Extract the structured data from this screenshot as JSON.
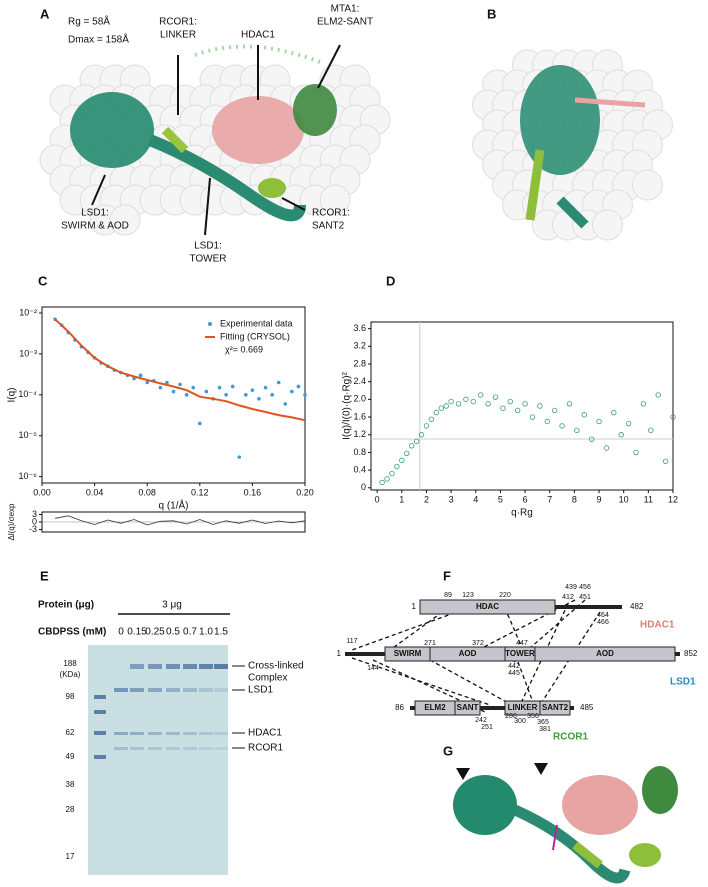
{
  "panel_a": {
    "label": "A",
    "rg": "Rg = 58Å",
    "dmax": "Dmax = 158Å",
    "annotations": [
      [
        "RCOR1:",
        "LINKER"
      ],
      [
        "HDAC1"
      ],
      [
        "MTA1:",
        "ELM2-SANT"
      ],
      [
        "LSD1:",
        "SWIRM & AOD"
      ],
      [
        "LSD1:",
        "TOWER"
      ],
      [
        "RCOR1:",
        "SANT2"
      ]
    ]
  },
  "panel_b": {
    "label": "B"
  },
  "chart_data": [
    {
      "type": "scatter",
      "label": "C",
      "ylabel": "I(q)",
      "xlabel": "q (1/Å)",
      "log_y": true,
      "xlim": [
        0,
        0.2
      ],
      "ylim": [
        7e-07,
        0.014
      ],
      "xticks": [
        {
          "value": 0,
          "label": "0.00"
        },
        0.04,
        0.08,
        0.12,
        0.16,
        {
          "value": 0.2,
          "label": "0.20"
        }
      ],
      "yticks": [
        {
          "value": 0.01,
          "label": "10⁻²"
        },
        {
          "value": 0.001,
          "label": "10⁻³"
        },
        {
          "value": 0.0001,
          "label": "10⁻⁴"
        },
        {
          "value": 1e-05,
          "label": "10⁻⁵"
        },
        {
          "value": 1e-06,
          "label": "10⁻⁶"
        }
      ],
      "annotation": "χ²= 0.669",
      "series": [
        {
          "name": "Experimental data",
          "color": "#3a9ad9",
          "style": "points",
          "x": [
            0.01,
            0.015,
            0.02,
            0.025,
            0.03,
            0.035,
            0.04,
            0.045,
            0.05,
            0.055,
            0.06,
            0.065,
            0.07,
            0.075,
            0.08,
            0.085,
            0.09,
            0.095,
            0.1,
            0.105,
            0.11,
            0.115,
            0.12,
            0.125,
            0.13,
            0.135,
            0.14,
            0.145,
            0.15,
            0.155,
            0.16,
            0.165,
            0.17,
            0.175,
            0.18,
            0.185,
            0.19,
            0.195,
            0.2
          ],
          "values": [
            0.007,
            0.005,
            0.0033,
            0.0022,
            0.0015,
            0.0011,
            0.0008,
            0.0006,
            0.0005,
            0.0004,
            0.00035,
            0.0003,
            0.00025,
            0.0003,
            0.0002,
            0.00022,
            0.00015,
            0.0002,
            0.00012,
            0.00018,
            0.0001,
            0.00015,
            2e-05,
            0.00012,
            8e-05,
            0.00015,
            0.0001,
            0.00016,
            3e-06,
            0.0001,
            0.00013,
            8e-05,
            0.00015,
            0.0001,
            0.0002,
            6e-05,
            0.00012,
            0.00016,
            0.0001
          ]
        },
        {
          "name": "Fitting (CRYSOL)",
          "color": "#e0531f",
          "style": "line",
          "x": [
            0.01,
            0.02,
            0.03,
            0.04,
            0.05,
            0.06,
            0.07,
            0.08,
            0.09,
            0.1,
            0.11,
            0.12,
            0.13,
            0.14,
            0.15,
            0.16,
            0.17,
            0.18,
            0.19,
            0.2
          ],
          "values": [
            0.007,
            0.0035,
            0.0016,
            0.0008,
            0.0005,
            0.00035,
            0.00028,
            0.00023,
            0.00019,
            0.00016,
            0.00013,
            9e-05,
            8e-05,
            7e-05,
            5.5e-05,
            4.5e-05,
            3.8e-05,
            3.2e-05,
            2.8e-05,
            2.4e-05
          ]
        }
      ]
    },
    {
      "type": "line",
      "ylabel": "Δl(q)/σexp",
      "xlim": [
        0,
        0.2
      ],
      "ylim": [
        -4,
        4
      ],
      "yticks": [
        3,
        0,
        -3
      ],
      "series": [
        {
          "color": "#333333",
          "style": "line",
          "x": [
            0.01,
            0.02,
            0.03,
            0.04,
            0.05,
            0.06,
            0.07,
            0.08,
            0.09,
            0.1,
            0.11,
            0.12,
            0.13,
            0.14,
            0.15,
            0.16,
            0.17,
            0.18,
            0.19,
            0.2
          ],
          "values": [
            1.5,
            2.5,
            0.5,
            -1,
            0.8,
            -0.5,
            1,
            -1.2,
            0.3,
            0.5,
            -0.8,
            1,
            -1,
            0.5,
            -0.5,
            0.8,
            -0.6,
            0.4,
            -0.3,
            0.5
          ]
        }
      ]
    },
    {
      "type": "scatter",
      "label": "D",
      "ylabel": "I(q)/I(0)·(q·Rg)²",
      "xlabel": "q·Rg",
      "xlim": [
        -0.25,
        12
      ],
      "ylim": [
        -0.05,
        3.75
      ],
      "xticks": [
        0,
        1,
        2,
        3,
        4,
        5,
        6,
        7,
        8,
        9,
        10,
        11,
        12
      ],
      "yticks": [
        0,
        0.4,
        0.8,
        1.2,
        1.6,
        {
          "value": 2,
          "label": "2.0"
        },
        2.4,
        2.8,
        3.2,
        3.6
      ],
      "ref_x": 1.73,
      "ref_y": 1.104,
      "series": [
        {
          "color": "#3a9a78",
          "style": "open-points",
          "x": [
            0.2,
            0.4,
            0.6,
            0.8,
            1.0,
            1.2,
            1.4,
            1.6,
            1.8,
            2.0,
            2.2,
            2.4,
            2.6,
            2.8,
            3.0,
            3.3,
            3.6,
            3.9,
            4.2,
            4.5,
            4.8,
            5.1,
            5.4,
            5.7,
            6.0,
            6.3,
            6.6,
            6.9,
            7.2,
            7.5,
            7.8,
            8.1,
            8.4,
            8.7,
            9.0,
            9.3,
            9.6,
            9.9,
            10.2,
            10.5,
            10.8,
            11.1,
            11.4,
            11.7,
            12.0
          ],
          "values": [
            0.12,
            0.2,
            0.32,
            0.48,
            0.62,
            0.78,
            0.95,
            1.05,
            1.2,
            1.4,
            1.55,
            1.7,
            1.8,
            1.85,
            1.95,
            1.9,
            2.0,
            1.95,
            2.1,
            1.9,
            2.05,
            1.8,
            1.95,
            1.75,
            1.9,
            1.6,
            1.85,
            1.5,
            1.75,
            1.4,
            1.9,
            1.3,
            1.65,
            1.1,
            1.5,
            0.9,
            1.7,
            1.2,
            1.45,
            0.8,
            1.9,
            1.3,
            2.1,
            0.6,
            1.6
          ]
        }
      ]
    }
  ],
  "panel_e": {
    "label": "E",
    "protein_label": "Protein (μg)",
    "amount": "3 μg",
    "crosslinker_label": "CBDPSS (mM)",
    "concentrations": [
      "0",
      "0.15",
      "0.25",
      "0.5",
      "0.7",
      "1.0",
      "1.5"
    ],
    "markers": [
      "188",
      "98",
      "62",
      "49",
      "38",
      "28",
      "17"
    ],
    "marker_unit": "(KDa)",
    "bands": [
      [
        "Cross-linked",
        "Complex"
      ],
      [
        "LSD1"
      ],
      [
        "HDAC1"
      ],
      [
        "RCOR1"
      ]
    ]
  },
  "panel_f": {
    "label": "F",
    "proteins": [
      {
        "name": "HDAC1",
        "start": "1",
        "end": "482",
        "domains": [
          "HDAC"
        ],
        "sites": [
          "89",
          "123",
          "220",
          "439",
          "456",
          "412",
          "451",
          "464",
          "466"
        ]
      },
      {
        "name": "LSD1",
        "start": "1",
        "end": "852",
        "domains": [
          "SWIRM",
          "AOD",
          "TOWER",
          "AOD"
        ],
        "sites": [
          "117",
          "144",
          "271",
          "372",
          "447",
          "442",
          "445"
        ]
      },
      {
        "name": "RCOR1",
        "start": "86",
        "end": "485",
        "domains": [
          "ELM2",
          "SANT",
          "LINKER",
          "SANT2"
        ],
        "sites": [
          "242",
          "251",
          "286",
          "300",
          "356",
          "365",
          "381"
        ]
      }
    ]
  },
  "panel_g": {
    "label": "G"
  }
}
